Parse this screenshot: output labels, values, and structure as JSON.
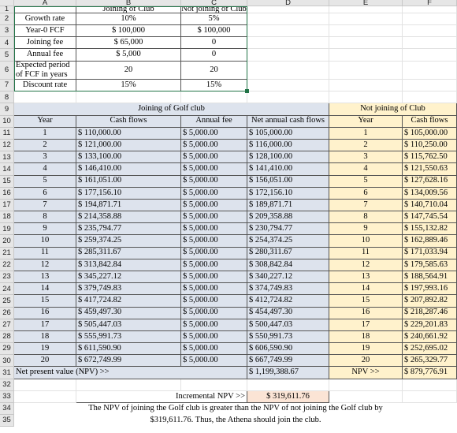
{
  "columns": [
    "",
    "A",
    "B",
    "C",
    "D",
    "E",
    "F"
  ],
  "rows": [
    "1",
    "2",
    "3",
    "4",
    "5",
    "6",
    "7",
    "8",
    "9",
    "10",
    "11",
    "12",
    "13",
    "14",
    "15",
    "16",
    "17",
    "18",
    "19",
    "20",
    "21",
    "22",
    "23",
    "24",
    "25",
    "26",
    "27",
    "28",
    "29",
    "30",
    "31",
    "32",
    "33",
    "34",
    "35"
  ],
  "inputs": {
    "header_join": "Joining of Club",
    "header_not": "Not joining of Club",
    "rows": [
      {
        "label": "Growth rate",
        "join": "10%",
        "not": "5%"
      },
      {
        "label": "Year-0 FCF",
        "join": "$ 100,000",
        "not": "$ 100,000"
      },
      {
        "label": "Joining fee",
        "join": "$ 65,000",
        "not": "0"
      },
      {
        "label": "Annual fee",
        "join": "$ 5,000",
        "not": "0"
      },
      {
        "label": "Expected period of FCF in years",
        "join": "20",
        "not": "20"
      },
      {
        "label": "Discount rate",
        "join": "15%",
        "not": "15%"
      }
    ]
  },
  "golf": {
    "title": "Joining of Golf club",
    "col_year": "Year",
    "col_cash": "Cash flows",
    "col_fee": "Annual fee",
    "col_net": "Net annual cash flows",
    "rows": [
      {
        "year": "1",
        "cash": "$ 110,000.00",
        "fee": "$ 5,000.00",
        "net": "$ 105,000.00"
      },
      {
        "year": "2",
        "cash": "$ 121,000.00",
        "fee": "$ 5,000.00",
        "net": "$ 116,000.00"
      },
      {
        "year": "3",
        "cash": "$ 133,100.00",
        "fee": "$ 5,000.00",
        "net": "$ 128,100.00"
      },
      {
        "year": "4",
        "cash": "$ 146,410.00",
        "fee": "$ 5,000.00",
        "net": "$ 141,410.00"
      },
      {
        "year": "5",
        "cash": "$ 161,051.00",
        "fee": "$ 5,000.00",
        "net": "$ 156,051.00"
      },
      {
        "year": "6",
        "cash": "$ 177,156.10",
        "fee": "$ 5,000.00",
        "net": "$ 172,156.10"
      },
      {
        "year": "7",
        "cash": "$ 194,871.71",
        "fee": "$ 5,000.00",
        "net": "$ 189,871.71"
      },
      {
        "year": "8",
        "cash": "$ 214,358.88",
        "fee": "$ 5,000.00",
        "net": "$ 209,358.88"
      },
      {
        "year": "9",
        "cash": "$ 235,794.77",
        "fee": "$ 5,000.00",
        "net": "$ 230,794.77"
      },
      {
        "year": "10",
        "cash": "$ 259,374.25",
        "fee": "$ 5,000.00",
        "net": "$ 254,374.25"
      },
      {
        "year": "11",
        "cash": "$ 285,311.67",
        "fee": "$ 5,000.00",
        "net": "$ 280,311.67"
      },
      {
        "year": "12",
        "cash": "$ 313,842.84",
        "fee": "$ 5,000.00",
        "net": "$ 308,842.84"
      },
      {
        "year": "13",
        "cash": "$ 345,227.12",
        "fee": "$ 5,000.00",
        "net": "$ 340,227.12"
      },
      {
        "year": "14",
        "cash": "$ 379,749.83",
        "fee": "$ 5,000.00",
        "net": "$ 374,749.83"
      },
      {
        "year": "15",
        "cash": "$ 417,724.82",
        "fee": "$ 5,000.00",
        "net": "$ 412,724.82"
      },
      {
        "year": "16",
        "cash": "$ 459,497.30",
        "fee": "$ 5,000.00",
        "net": "$ 454,497.30"
      },
      {
        "year": "17",
        "cash": "$ 505,447.03",
        "fee": "$ 5,000.00",
        "net": "$ 500,447.03"
      },
      {
        "year": "18",
        "cash": "$ 555,991.73",
        "fee": "$ 5,000.00",
        "net": "$ 550,991.73"
      },
      {
        "year": "19",
        "cash": "$ 611,590.90",
        "fee": "$ 5,000.00",
        "net": "$ 606,590.90"
      },
      {
        "year": "20",
        "cash": "$ 672,749.99",
        "fee": "$ 5,000.00",
        "net": "$ 667,749.99"
      }
    ],
    "npv_label": "Net present value (NPV) >>",
    "npv_value": "$ 1,199,388.67"
  },
  "notjoin": {
    "title": "Not joining of Club",
    "col_year": "Year",
    "col_cash": "Cash flows",
    "rows": [
      {
        "year": "1",
        "cash": "$ 105,000.00"
      },
      {
        "year": "2",
        "cash": "$ 110,250.00"
      },
      {
        "year": "3",
        "cash": "$ 115,762.50"
      },
      {
        "year": "4",
        "cash": "$ 121,550.63"
      },
      {
        "year": "5",
        "cash": "$ 127,628.16"
      },
      {
        "year": "6",
        "cash": "$ 134,009.56"
      },
      {
        "year": "7",
        "cash": "$ 140,710.04"
      },
      {
        "year": "8",
        "cash": "$ 147,745.54"
      },
      {
        "year": "9",
        "cash": "$ 155,132.82"
      },
      {
        "year": "10",
        "cash": "$ 162,889.46"
      },
      {
        "year": "11",
        "cash": "$ 171,033.94"
      },
      {
        "year": "12",
        "cash": "$ 179,585.63"
      },
      {
        "year": "13",
        "cash": "$ 188,564.91"
      },
      {
        "year": "14",
        "cash": "$ 197,993.16"
      },
      {
        "year": "15",
        "cash": "$ 207,892.82"
      },
      {
        "year": "16",
        "cash": "$ 218,287.46"
      },
      {
        "year": "17",
        "cash": "$ 229,201.83"
      },
      {
        "year": "18",
        "cash": "$ 240,661.92"
      },
      {
        "year": "19",
        "cash": "$ 252,695.02"
      },
      {
        "year": "20",
        "cash": "$ 265,329.77"
      }
    ],
    "npv_label": "NPV >>",
    "npv_value": "$ 879,776.91"
  },
  "incremental": {
    "label": "Incremental NPV >>",
    "value": "$ 319,611.76"
  },
  "conclusion": {
    "line1": "The NPV of joining the Golf club is greater than the NPV of not joining the Golf club by",
    "line2": "$319,611.76. Thus, the Athena should join the club."
  },
  "colors": {
    "golf_fill": "#dde3ed",
    "notjoin_fill": "#fff2cc",
    "incremental_fill": "#fbe4d5",
    "selection_border": "#217346"
  }
}
